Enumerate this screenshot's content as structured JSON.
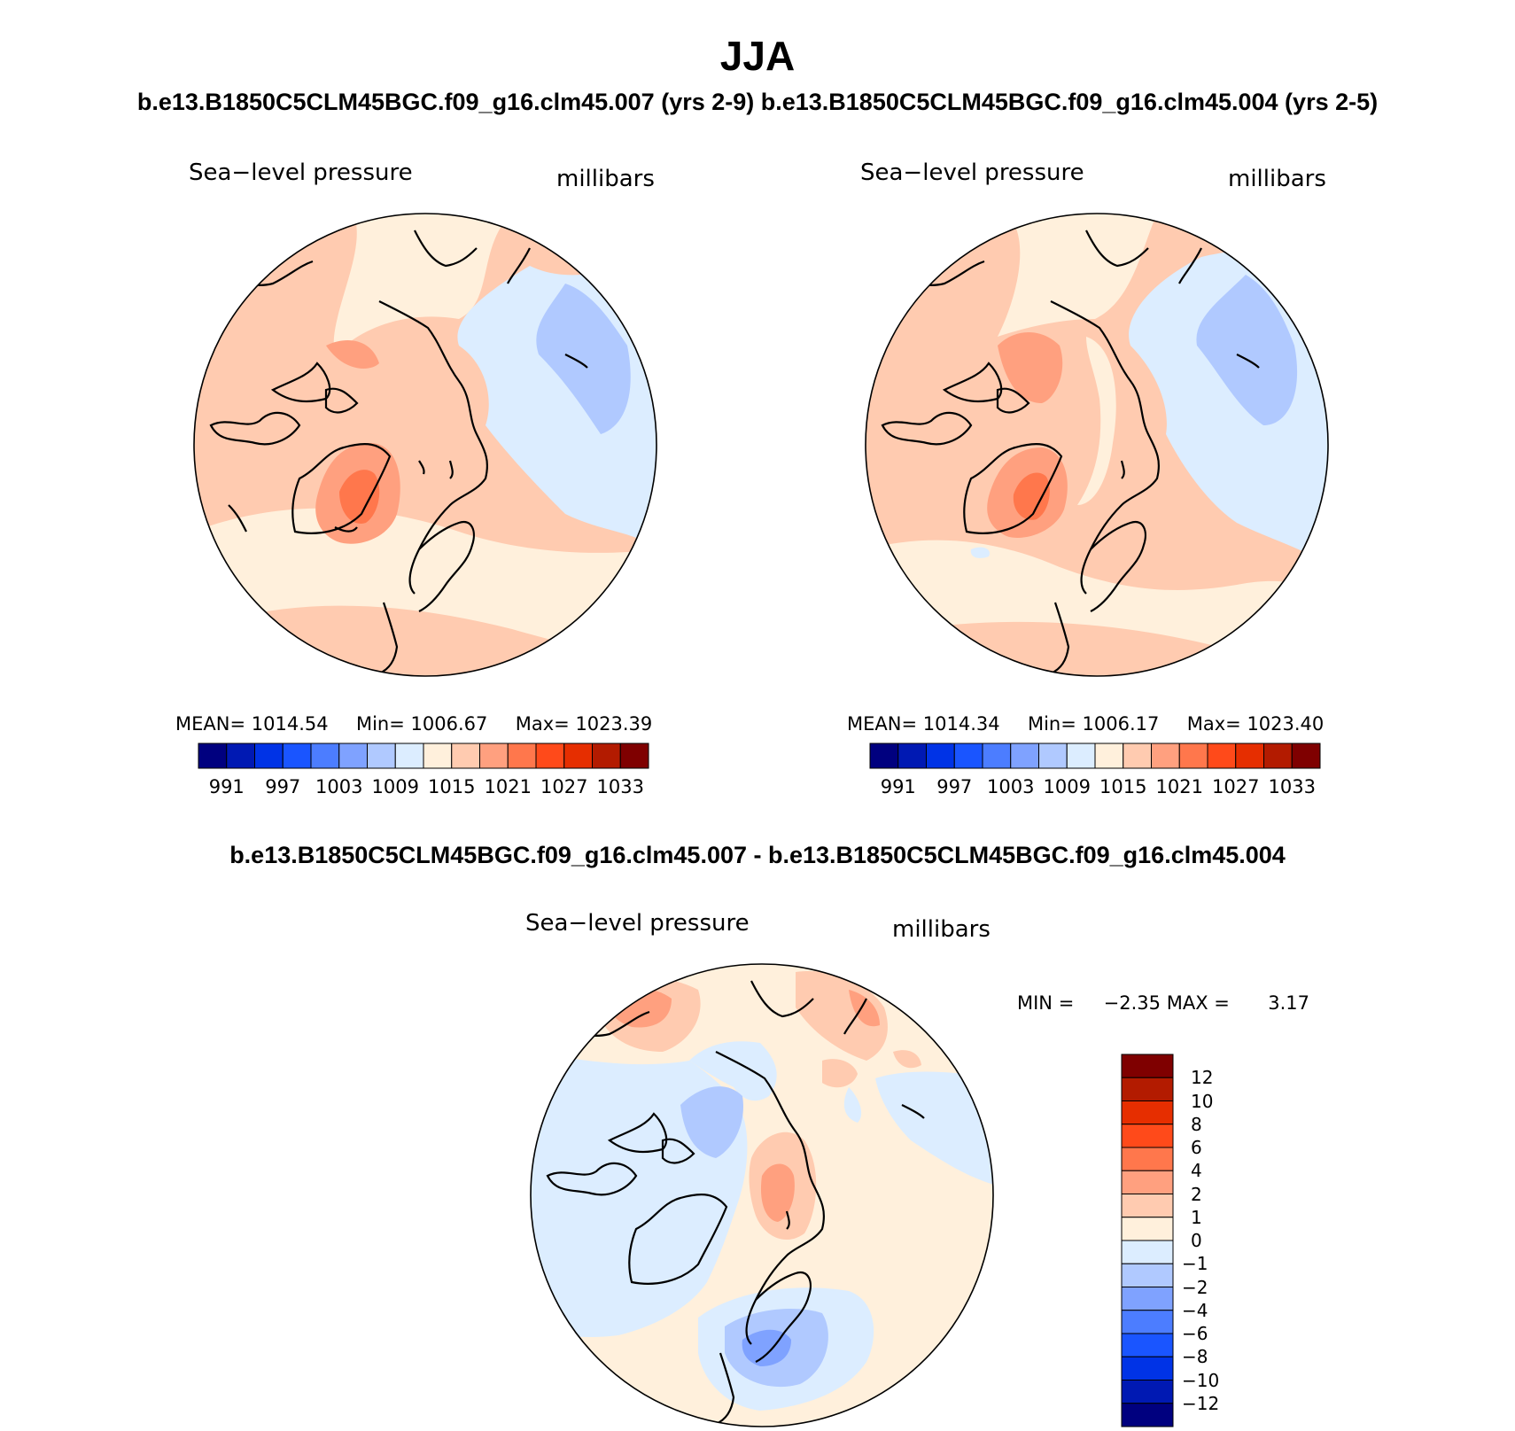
{
  "figure": {
    "title": "JJA",
    "top_caption": "b.e13.B1850C5CLM45BGC.f09_g16.clm45.007 (yrs 2-9) b.e13.B1850C5CLM45BGC.f09_g16.clm45.004 (yrs 2-5)",
    "bottom_caption": "b.e13.B1850C5CLM45BGC.f09_g16.clm45.007 - b.e13.B1850C5CLM45BGC.f09_g16.clm45.004"
  },
  "panels": {
    "left": {
      "variable": "Sea−level pressure",
      "units": "millibars",
      "mean_label": "MEAN=",
      "mean": "1014.54",
      "min_label": "Min=",
      "min": "1006.67",
      "max_label": "Max=",
      "max": "1023.39"
    },
    "right": {
      "variable": "Sea−level pressure",
      "units": "millibars",
      "mean_label": "MEAN=",
      "mean": "1014.34",
      "min_label": "Min=",
      "min": "1006.17",
      "max_label": "Max=",
      "max": "1023.40"
    },
    "diff": {
      "variable": "Sea−level pressure",
      "units": "millibars",
      "min_label": "MIN =",
      "min": "−2.35",
      "max_label": "MAX =",
      "max": "3.17"
    }
  },
  "colorbar_abs": {
    "colors": [
      "#00007f",
      "#0019b3",
      "#0033e6",
      "#1a55ff",
      "#4c7dff",
      "#7fa2ff",
      "#b0c9ff",
      "#dcedff",
      "#fff0dc",
      "#ffcbb0",
      "#ffa07f",
      "#ff774c",
      "#ff4a1a",
      "#e62e00",
      "#b31b00",
      "#7f0000"
    ],
    "labels": [
      "991",
      "997",
      "1003",
      "1009",
      "1015",
      "1021",
      "1027",
      "1033"
    ]
  },
  "colorbar_diff": {
    "colors": [
      "#00007f",
      "#0019b3",
      "#0033e6",
      "#1a55ff",
      "#4c7dff",
      "#7fa2ff",
      "#b0c9ff",
      "#dcedff",
      "#fff0dc",
      "#ffcbb0",
      "#ffa07f",
      "#ff774c",
      "#ff4a1a",
      "#e62e00",
      "#b31b00",
      "#7f0000"
    ],
    "labels": [
      "12",
      "10",
      "8",
      "6",
      "4",
      "2",
      "1",
      "0",
      "−1",
      "−2",
      "−4",
      "−6",
      "−8",
      "−10",
      "−12"
    ]
  }
}
